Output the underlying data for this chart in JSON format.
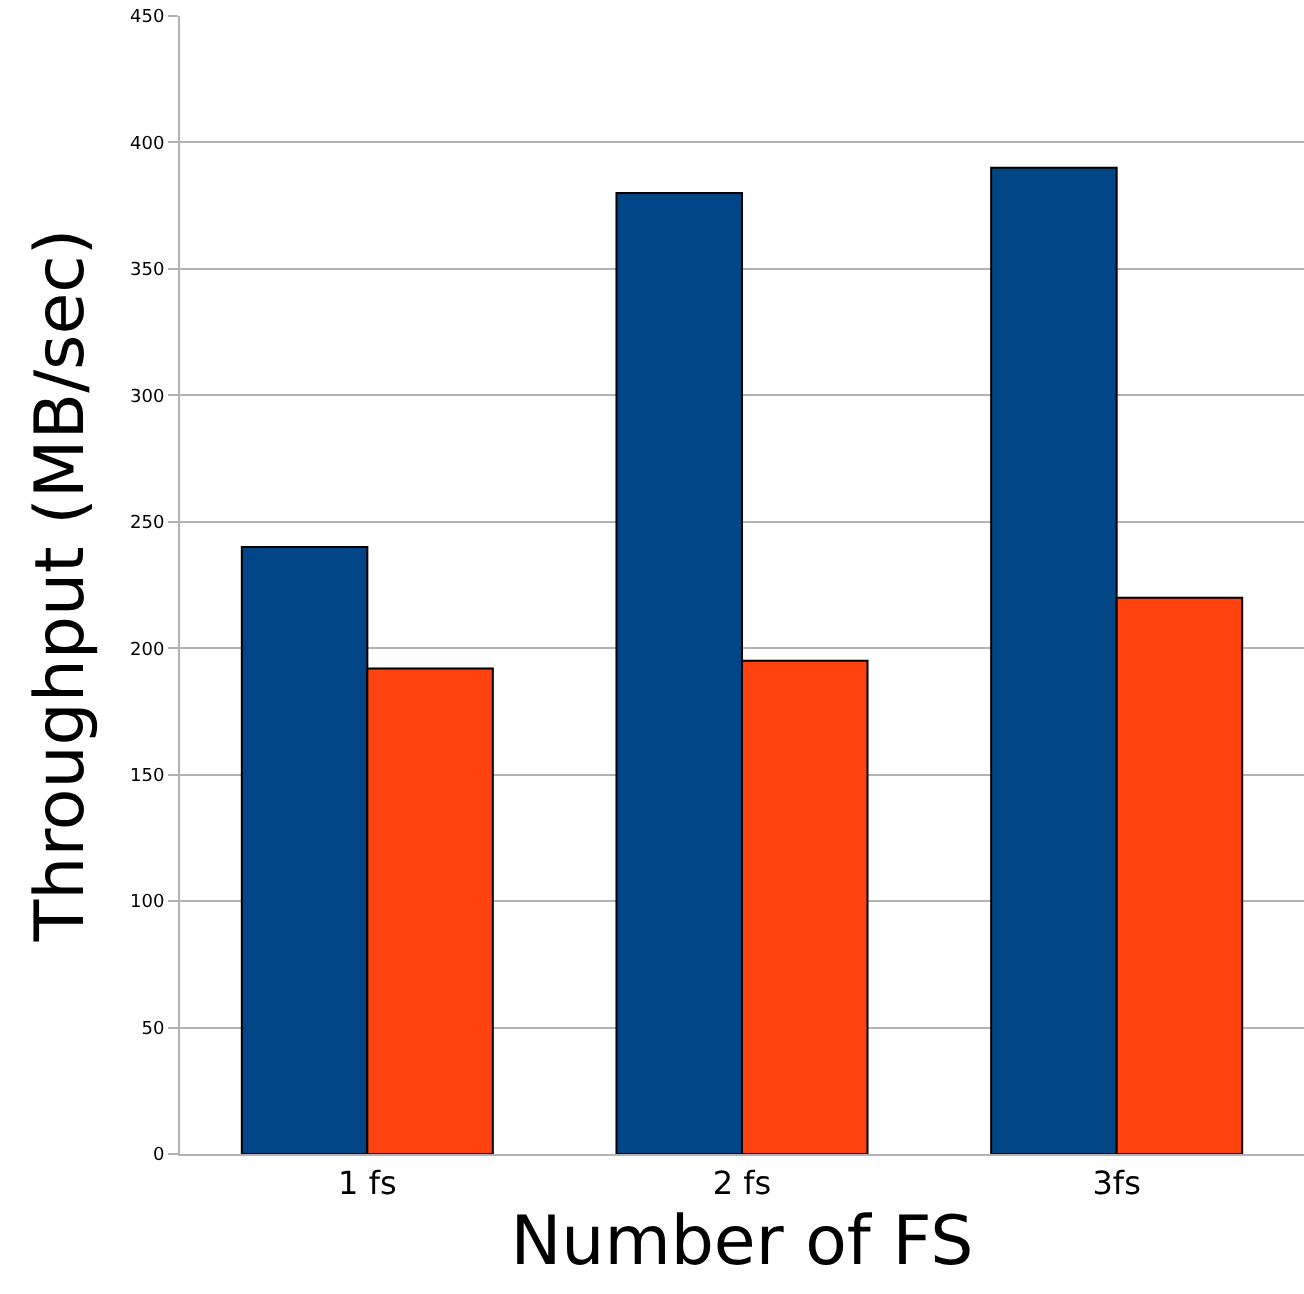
{
  "chart_data": {
    "type": "bar",
    "xlabel": "Number of FS",
    "ylabel": "Throughput (MB/sec)",
    "categories": [
      "1 fs",
      "2 fs",
      "3fs"
    ],
    "series": [
      {
        "color": "#004586",
        "values": [
          240,
          380,
          390
        ]
      },
      {
        "color": "#ff420e",
        "values": [
          192,
          195,
          220
        ]
      }
    ],
    "ylim": [
      0,
      450
    ],
    "yticks": [
      0,
      50,
      100,
      150,
      200,
      250,
      300,
      350,
      400,
      450
    ],
    "grid": "y"
  }
}
